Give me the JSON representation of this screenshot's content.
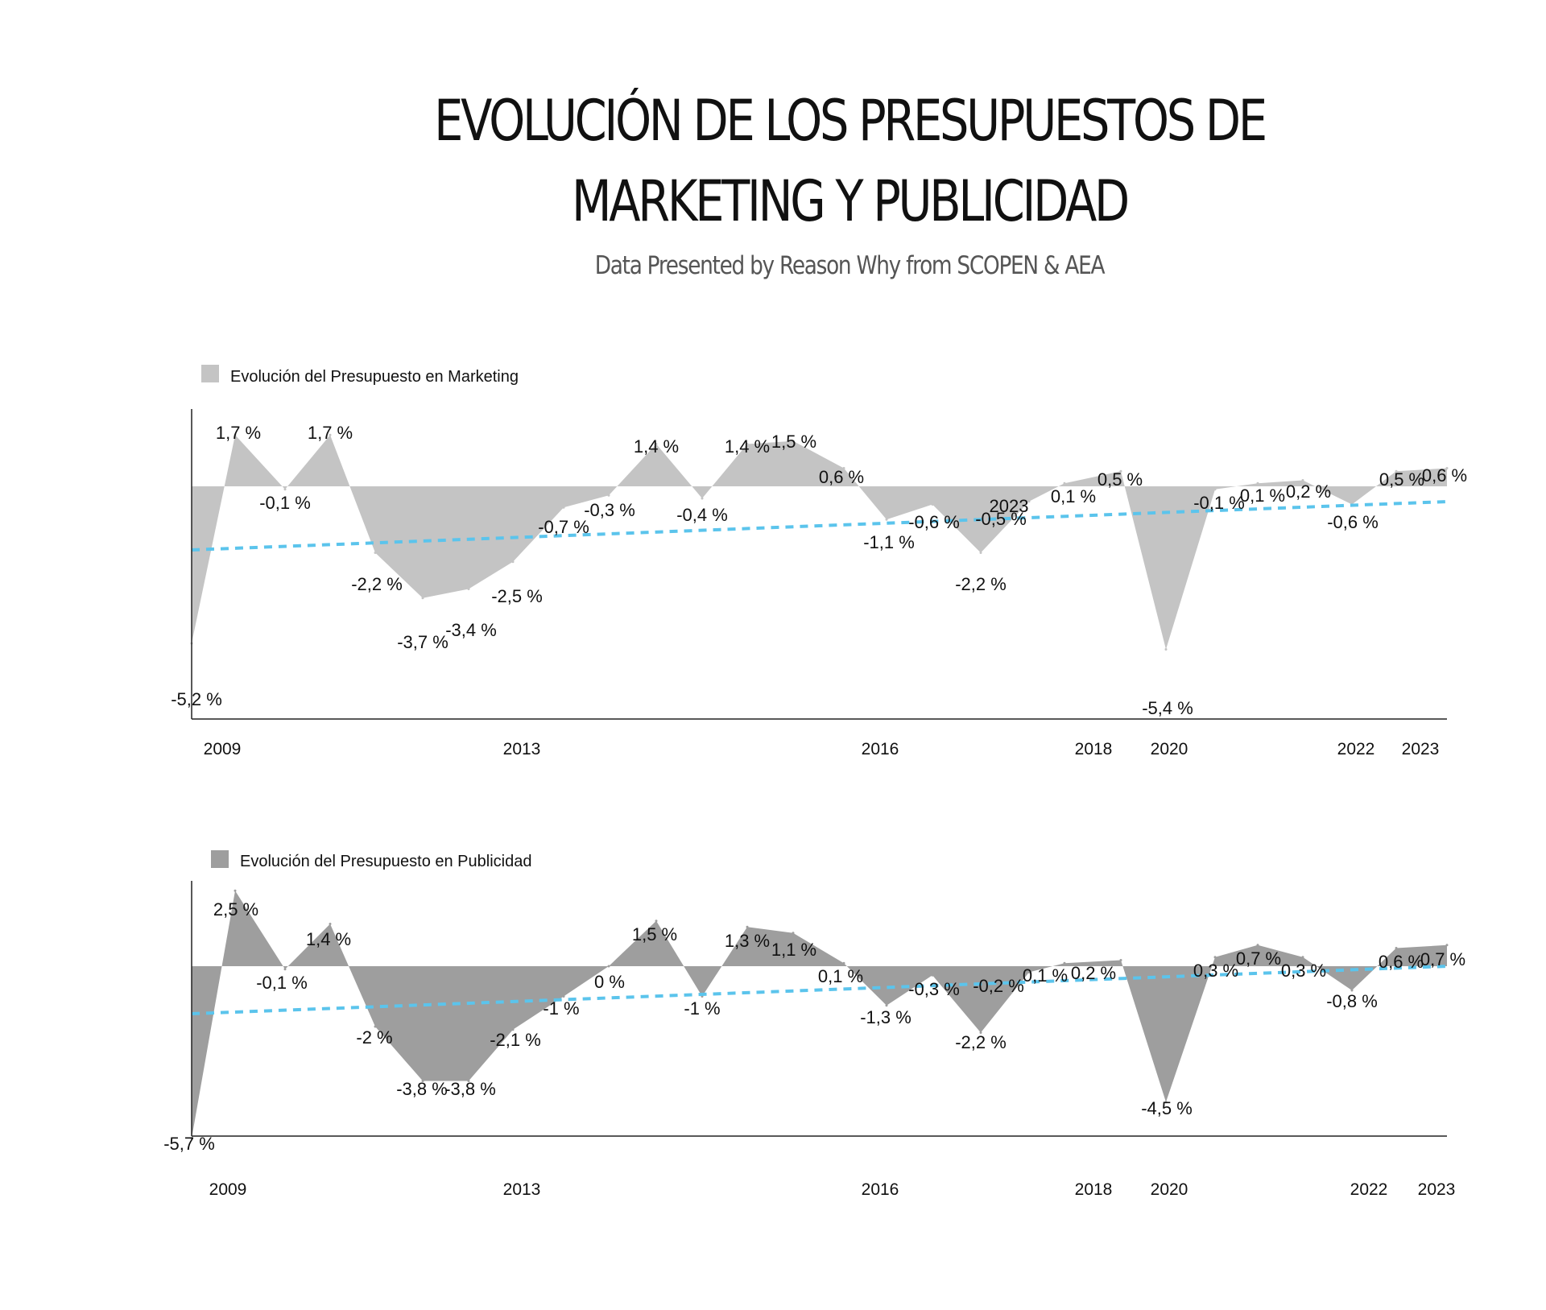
{
  "title_line_1": "EVOLUCIÓN DE LOS PRESUPUESTOS DE",
  "title_line_2": "MARKETING Y PUBLICIDAD",
  "subtitle": "Data Presented by Reason Why from SCOPEN & AEA",
  "colors": {
    "marketing_fill": "#c4c4c4",
    "publicidad_fill": "#9e9e9e",
    "trend_line": "#5bc4ec",
    "axis": "#222222"
  },
  "chart_data": [
    {
      "type": "area",
      "legend": "Evolución del Presupuesto en Marketing",
      "legend_position": "top-left",
      "grid": false,
      "trend_line": "dashed",
      "ylim": [
        -5.4,
        1.7
      ],
      "x_tick_labels": [
        "2009",
        "2013",
        "2016",
        "2018",
        "2020",
        "2022",
        "2023"
      ],
      "labels": [
        "-5,2 %",
        "1,7 %",
        "-0,1 %",
        "1,7 %",
        "-2,2 %",
        "-3,7 %",
        "-3,4 %",
        "-2,5 %",
        "-0,7 %",
        "-0,3 %",
        "1,4 %",
        "-0,4 %",
        "1,4 %",
        "1,5 %",
        "0,6 %",
        "-1,1 %",
        "-0,6 %",
        "-2,2 %",
        "-0,5 %",
        "2023",
        "0,1 %",
        "0,5 %",
        "-5,4 %",
        "-0,1 %",
        "0,1 %",
        "0,2 %",
        "-0,6 %",
        "0,5 %",
        "0,6 %"
      ],
      "values": [
        -5.2,
        1.7,
        -0.1,
        1.7,
        -2.2,
        -3.7,
        -3.4,
        -2.5,
        -0.7,
        -0.3,
        1.4,
        -0.4,
        1.4,
        1.5,
        0.6,
        -1.1,
        -0.6,
        -2.2,
        -0.5,
        null,
        0.1,
        0.5,
        -5.4,
        -0.1,
        0.1,
        0.2,
        -0.6,
        0.5,
        0.6
      ]
    },
    {
      "type": "area",
      "legend": "Evolución del Presupuesto en Publicidad",
      "legend_position": "top-left",
      "grid": false,
      "trend_line": "dashed",
      "ylim": [
        -5.7,
        2.5
      ],
      "x_tick_labels": [
        "2009",
        "2013",
        "2016",
        "2018",
        "2020",
        "2022",
        "2023"
      ],
      "labels": [
        "-5,7 %",
        "2,5 %",
        "-0,1 %",
        "1,4 %",
        "-2 %",
        "-3,8 %",
        "-3,8 %",
        "-2,1 %",
        "-1 %",
        "0 %",
        "1,5 %",
        "-1 %",
        "1,3 %",
        "1,1 %",
        "0,1 %",
        "-1,3 %",
        "-0,3 %",
        "-2,2 %",
        "-0,2 %",
        "0,1 %",
        "0,2 %",
        "-4,5 %",
        "0,3 %",
        "0,7 %",
        "0,3 %",
        "-0,8 %",
        "0,6 %",
        "0,7 %"
      ],
      "values": [
        -5.7,
        2.5,
        -0.1,
        1.4,
        -2.0,
        -3.8,
        -3.8,
        -2.1,
        -1.0,
        0.0,
        1.5,
        -1.0,
        1.3,
        1.1,
        0.1,
        -1.3,
        -0.3,
        -2.2,
        -0.2,
        0.1,
        0.2,
        -4.5,
        0.3,
        0.7,
        0.3,
        -0.8,
        0.6,
        0.7
      ]
    }
  ]
}
